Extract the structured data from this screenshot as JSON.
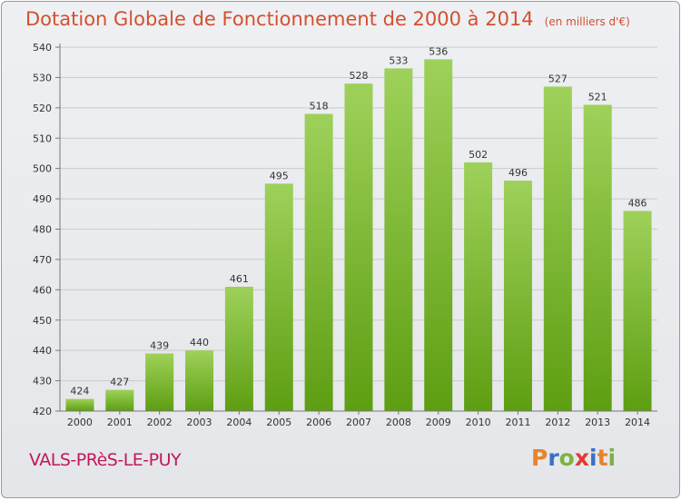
{
  "title": "Dotation Globale de Fonctionnement de 2000 à 2014",
  "unit_note": "(en milliers d'€)",
  "commune": "VALS-PRèS-LE-PUY",
  "logo": {
    "text": "Proxiti",
    "letter_colors": [
      "#e8832a",
      "#3b6fc6",
      "#7cb342",
      "#e53935",
      "#3b6fc6",
      "#e8832a",
      "#7cb342"
    ]
  },
  "colors": {
    "title": "#d4502f",
    "commune": "#c2185b",
    "bar_top": "#9ed15a",
    "bar_bottom": "#5e9e12"
  },
  "chart_data": {
    "type": "bar",
    "title": "Dotation Globale de Fonctionnement de 2000 à 2014",
    "subtitle": "(en milliers d'€)",
    "categories": [
      "2000",
      "2001",
      "2002",
      "2003",
      "2004",
      "2005",
      "2006",
      "2007",
      "2008",
      "2009",
      "2010",
      "2011",
      "2012",
      "2013",
      "2014"
    ],
    "values": [
      424,
      427,
      439,
      440,
      461,
      495,
      518,
      528,
      533,
      536,
      502,
      496,
      527,
      521,
      486
    ],
    "ylim": [
      420,
      540
    ],
    "yticks": [
      420,
      430,
      440,
      450,
      460,
      470,
      480,
      490,
      500,
      510,
      520,
      530,
      540
    ],
    "grid": true,
    "data_labels": true
  }
}
